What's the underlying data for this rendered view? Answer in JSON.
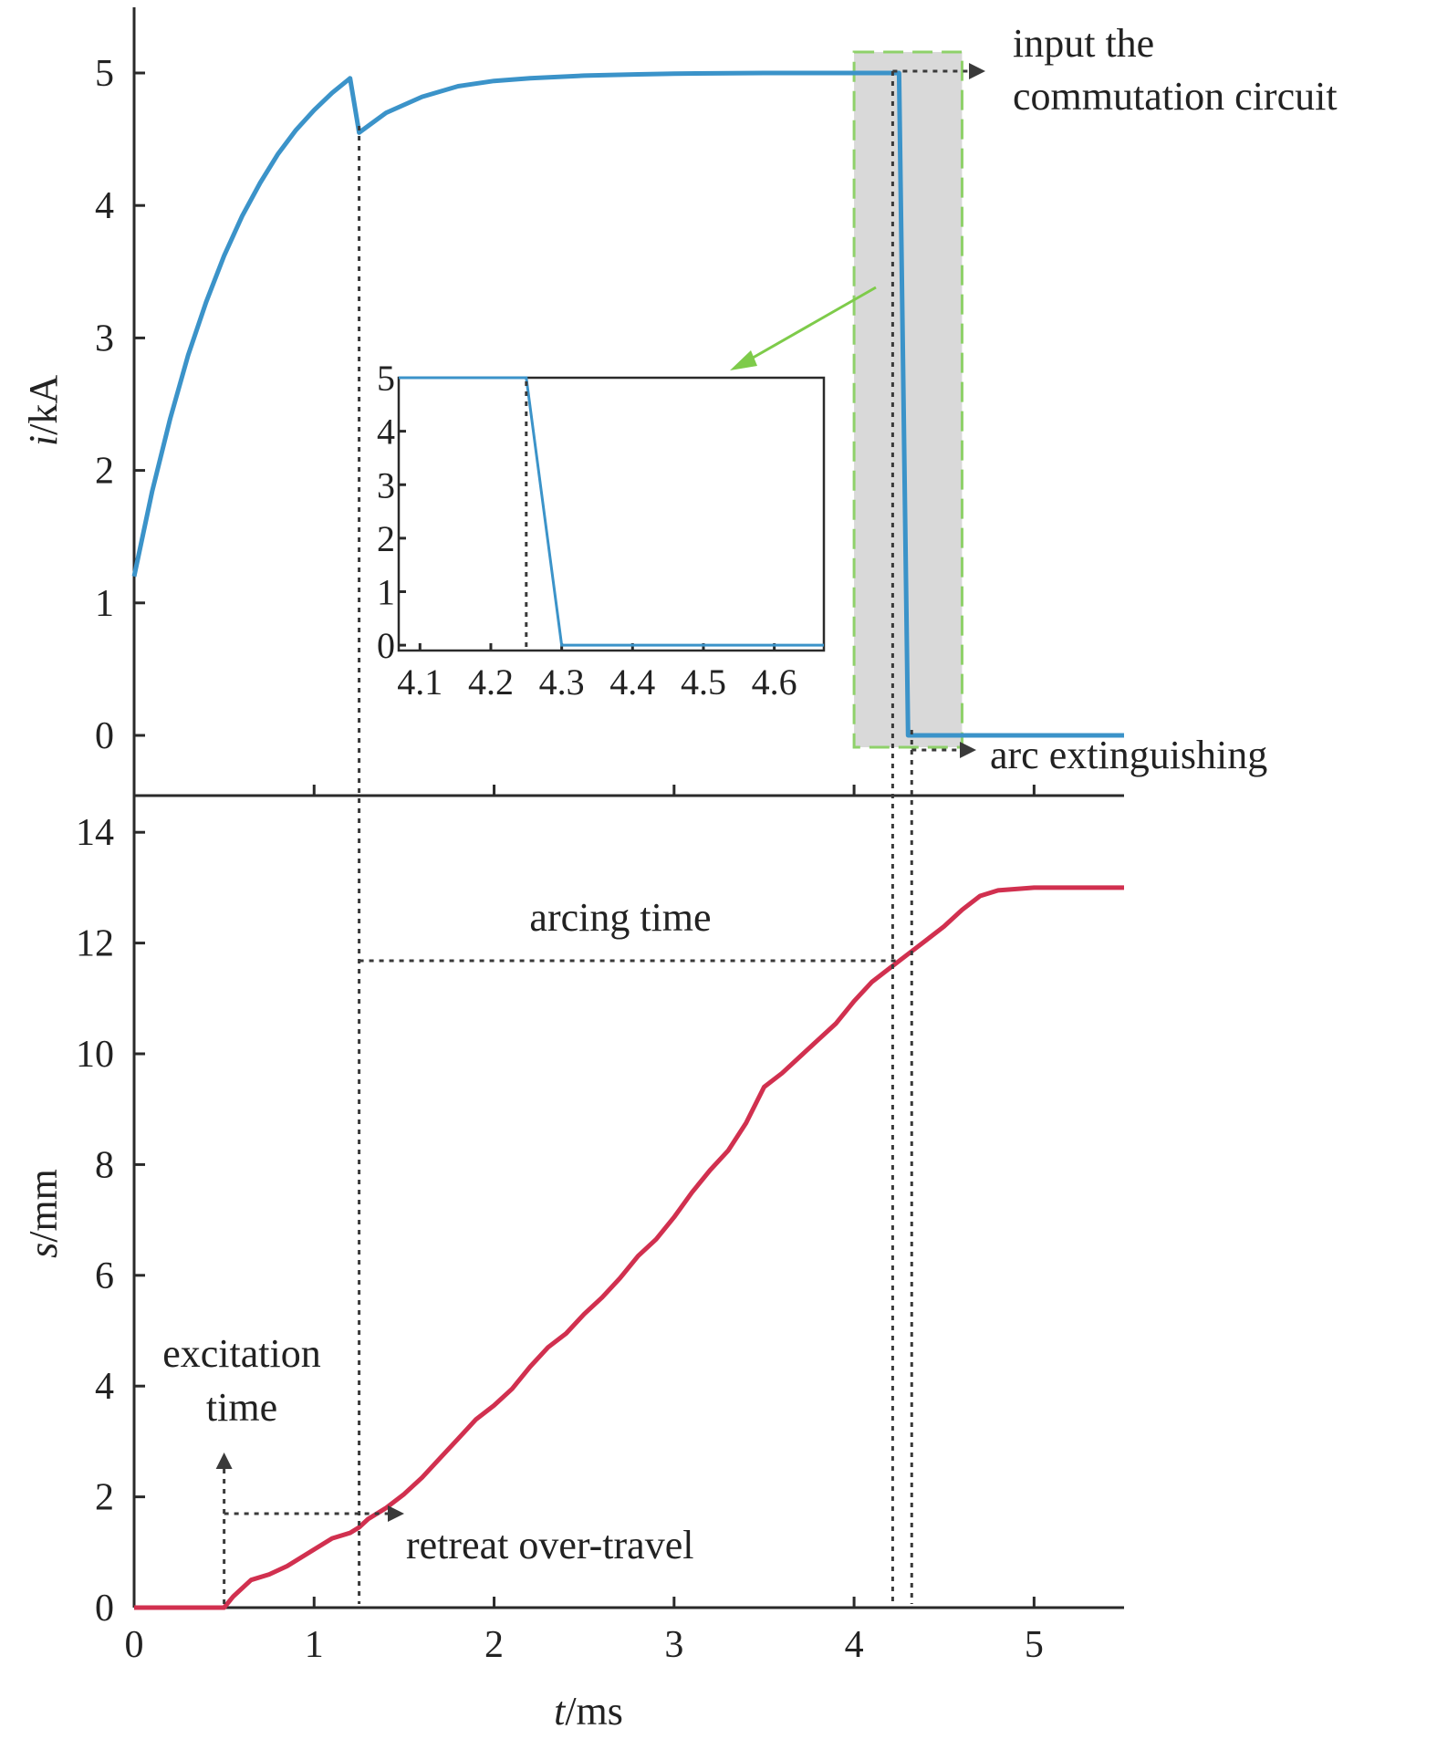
{
  "colors": {
    "current": "#3b93c9",
    "displacement": "#d1304f",
    "highlight_fill": "#d9d9d9",
    "highlight_border": "#8fd16a",
    "pointer": "#7ecb4a",
    "guides": "#3a3a3a"
  },
  "annotations": {
    "input_line1": "input the",
    "input_line2": "commutation circuit",
    "arc_extinguishing": "arc extinguishing",
    "arcing_time": "arcing time",
    "excitation_line1": "excitation",
    "excitation_line2": "time",
    "retreat_over_travel": "retreat over-travel"
  },
  "chart_data": [
    {
      "type": "line",
      "xlabel": "",
      "ylabel_italic": "i",
      "ylabel_unit": "/kA",
      "xlim": [
        0,
        5.5
      ],
      "ylim": [
        -0.5,
        5.5
      ],
      "yticks": [
        0,
        1,
        2,
        3,
        4,
        5
      ],
      "xticks": [
        1,
        2,
        3,
        4,
        5
      ],
      "series": [
        {
          "x": [
            0,
            0.1,
            0.2,
            0.3,
            0.4,
            0.5,
            0.6,
            0.7,
            0.8,
            0.9,
            1.0,
            1.1,
            1.2,
            1.25,
            1.4,
            1.6,
            1.8,
            2.0,
            2.2,
            2.5,
            2.8,
            3.0,
            3.5,
            4.0,
            4.25,
            4.3,
            4.6,
            5.5
          ],
          "y": [
            1.2,
            1.84,
            2.39,
            2.87,
            3.27,
            3.62,
            3.92,
            4.17,
            4.39,
            4.57,
            4.72,
            4.85,
            4.96,
            4.55,
            4.7,
            4.82,
            4.9,
            4.94,
            4.96,
            4.98,
            4.99,
            4.995,
            5.0,
            5.0,
            5.0,
            0.0,
            0.0,
            0.0
          ]
        }
      ],
      "highlight_x_range": [
        4.0,
        4.6
      ]
    },
    {
      "type": "line",
      "inset": true,
      "xlim": [
        4.07,
        4.67
      ],
      "ylim": [
        -0.1,
        5.0
      ],
      "xtick_labels": [
        "4.1",
        "4.2",
        "4.3",
        "4.4",
        "4.5",
        "4.6"
      ],
      "ytick_labels": [
        "0",
        "1",
        "2",
        "3",
        "4",
        "5"
      ],
      "series": [
        {
          "x": [
            4.07,
            4.25,
            4.3,
            4.67
          ],
          "y": [
            5.0,
            5.0,
            0.0,
            0.0
          ]
        }
      ],
      "marker_x": 4.25
    },
    {
      "type": "line",
      "xlabel_italic": "t",
      "xlabel_unit": "/ms",
      "ylabel_italic": "s",
      "ylabel_unit": "/mm",
      "xlim": [
        0,
        5.5
      ],
      "ylim": [
        0,
        14
      ],
      "xticks": [
        0,
        1,
        2,
        3,
        4,
        5
      ],
      "yticks": [
        0,
        2,
        4,
        6,
        8,
        10,
        12,
        14
      ],
      "series": [
        {
          "x": [
            0,
            0.3,
            0.5,
            0.55,
            0.65,
            0.75,
            0.85,
            1.0,
            1.1,
            1.2,
            1.25,
            1.3,
            1.4,
            1.5,
            1.6,
            1.7,
            1.8,
            1.9,
            2.0,
            2.1,
            2.2,
            2.3,
            2.4,
            2.5,
            2.6,
            2.7,
            2.8,
            2.9,
            3.0,
            3.1,
            3.2,
            3.3,
            3.4,
            3.5,
            3.6,
            3.7,
            3.8,
            3.9,
            4.0,
            4.1,
            4.2,
            4.3,
            4.4,
            4.5,
            4.6,
            4.7,
            4.8,
            5.0,
            5.2,
            5.5
          ],
          "y": [
            0.0,
            0.0,
            0.0,
            0.2,
            0.5,
            0.6,
            0.75,
            1.05,
            1.25,
            1.35,
            1.45,
            1.6,
            1.8,
            2.05,
            2.35,
            2.7,
            3.05,
            3.4,
            3.65,
            3.95,
            4.35,
            4.7,
            4.95,
            5.3,
            5.6,
            5.95,
            6.35,
            6.65,
            7.05,
            7.5,
            7.9,
            8.25,
            8.75,
            9.4,
            9.65,
            9.95,
            10.25,
            10.55,
            10.95,
            11.3,
            11.55,
            11.8,
            12.05,
            12.3,
            12.6,
            12.85,
            12.95,
            13.0,
            13.0,
            13.0
          ]
        }
      ],
      "markers": {
        "excitation_time": 0.5,
        "contact_separation": 1.25,
        "commutation": 4.25,
        "arc_extinguished": 4.3
      }
    }
  ]
}
